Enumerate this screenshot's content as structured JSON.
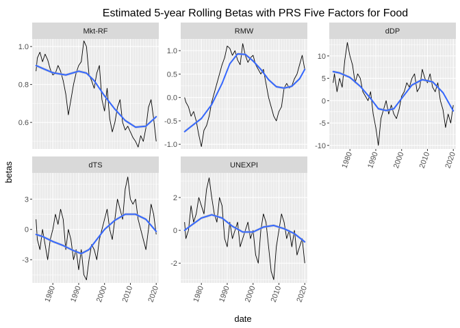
{
  "chart_data": {
    "type": "line",
    "title": "Estimated 5-year Rolling Betas with PRS Five Factors for Food",
    "xlabel": "date",
    "ylabel": "betas",
    "colors": {
      "panel_bg": "#ebebeb",
      "strip_bg": "#d9d9d9",
      "grid": "#ffffff",
      "raw_line": "#000000",
      "smooth_line": "#3366ff",
      "ribbon": "#bdbdbd"
    },
    "x_ticks": [
      1980,
      1990,
      2000,
      2010,
      2020
    ],
    "panels": [
      {
        "name": "Mkt-RF",
        "xlim": [
          1972,
          2021
        ],
        "ylim": [
          0.46,
          1.04
        ],
        "y_ticks": [
          0.6,
          0.8,
          1.0
        ],
        "y_tick_labels": [
          "0.6",
          "0.8",
          "1.0"
        ],
        "show_x_ticks": false,
        "series": [
          {
            "kind": "raw",
            "x": [
              1973.5,
              1974,
              1975,
              1976,
              1977,
              1978,
              1979,
              1980,
              1981,
              1982,
              1983,
              1984,
              1985,
              1986,
              1987,
              1988,
              1989,
              1990,
              1991,
              1992,
              1993,
              1994,
              1995,
              1996,
              1997,
              1998,
              1999,
              2000,
              2001,
              2002,
              2003,
              2004,
              2005,
              2006,
              2007,
              2008,
              2009,
              2010,
              2011,
              2012,
              2013,
              2014,
              2015,
              2016,
              2017,
              2018,
              2019,
              2020
            ],
            "y": [
              0.87,
              0.94,
              0.97,
              0.92,
              0.96,
              0.93,
              0.88,
              0.85,
              0.86,
              0.9,
              0.87,
              0.82,
              0.75,
              0.64,
              0.72,
              0.8,
              0.86,
              0.9,
              0.92,
              1.03,
              1.0,
              0.85,
              0.82,
              0.78,
              0.86,
              0.9,
              0.72,
              0.66,
              0.78,
              0.62,
              0.55,
              0.6,
              0.68,
              0.72,
              0.6,
              0.56,
              0.58,
              0.55,
              0.52,
              0.5,
              0.47,
              0.53,
              0.5,
              0.57,
              0.68,
              0.72,
              0.62,
              0.5
            ]
          },
          {
            "kind": "smooth",
            "x": [
              1973.5,
              1976,
              1980,
              1985,
              1990,
              1993,
              1996,
              2000,
              2004,
              2008,
              2012,
              2016,
              2020
            ],
            "y": [
              0.9,
              0.885,
              0.862,
              0.85,
              0.87,
              0.86,
              0.82,
              0.74,
              0.67,
              0.61,
              0.575,
              0.58,
              0.63
            ]
          }
        ]
      },
      {
        "name": "RMW",
        "xlim": [
          1972,
          2021
        ],
        "ylim": [
          -1.1,
          1.25
        ],
        "y_ticks": [
          -1.0,
          -0.5,
          0.0,
          0.5,
          1.0
        ],
        "y_tick_labels": [
          "-1.0",
          "-0.5",
          "0.0",
          "0.5",
          "1.0"
        ],
        "show_x_ticks": false,
        "series": [
          {
            "kind": "raw",
            "x": [
              1973.5,
              1974,
              1975,
              1976,
              1977,
              1978,
              1979,
              1980,
              1981,
              1982,
              1983,
              1984,
              1985,
              1986,
              1987,
              1988,
              1989,
              1990,
              1991,
              1992,
              1993,
              1994,
              1995,
              1996,
              1997,
              1998,
              1999,
              2000,
              2001,
              2002,
              2003,
              2004,
              2005,
              2006,
              2007,
              2008,
              2009,
              2010,
              2011,
              2012,
              2013,
              2014,
              2015,
              2016,
              2017,
              2018,
              2019,
              2020
            ],
            "y": [
              0.0,
              -0.1,
              -0.2,
              -0.4,
              -0.3,
              -0.5,
              -0.8,
              -1.05,
              -0.7,
              -0.6,
              -0.4,
              -0.1,
              0.1,
              0.3,
              0.5,
              0.7,
              0.85,
              1.1,
              1.05,
              0.9,
              1.0,
              0.8,
              0.7,
              1.15,
              0.9,
              0.75,
              0.85,
              0.9,
              0.7,
              0.6,
              0.5,
              0.6,
              0.3,
              0.0,
              -0.2,
              -0.4,
              -0.5,
              -0.3,
              -0.2,
              0.2,
              0.3,
              0.2,
              0.25,
              0.4,
              0.5,
              0.7,
              0.9,
              0.6
            ]
          },
          {
            "kind": "smooth",
            "x": [
              1973.5,
              1976,
              1980,
              1984,
              1988,
              1991,
              1994,
              1997,
              2000,
              2003,
              2006,
              2009,
              2012,
              2015,
              2018,
              2020
            ],
            "y": [
              -0.73,
              -0.62,
              -0.45,
              -0.15,
              0.3,
              0.72,
              0.93,
              0.92,
              0.78,
              0.6,
              0.38,
              0.23,
              0.2,
              0.24,
              0.4,
              0.6
            ]
          }
        ]
      },
      {
        "name": "dDP",
        "xlim": [
          1972,
          2021
        ],
        "ylim": [
          -10.8,
          13.8
        ],
        "y_ticks": [
          -10,
          -5,
          0,
          5,
          10
        ],
        "y_tick_labels": [
          "-10",
          "-5",
          "0",
          "5",
          "10"
        ],
        "show_x_ticks": true,
        "series": [
          {
            "kind": "raw",
            "x": [
              1973.5,
              1974,
              1975,
              1976,
              1977,
              1978,
              1979,
              1980,
              1981,
              1982,
              1983,
              1984,
              1985,
              1986,
              1987,
              1988,
              1989,
              1990,
              1991,
              1992,
              1993,
              1994,
              1995,
              1996,
              1997,
              1998,
              1999,
              2000,
              2001,
              2002,
              2003,
              2004,
              2005,
              2006,
              2007,
              2008,
              2009,
              2010,
              2011,
              2012,
              2013,
              2014,
              2015,
              2016,
              2017,
              2018,
              2019,
              2020
            ],
            "y": [
              4.0,
              6.0,
              2.0,
              5.0,
              3.0,
              9.0,
              13.0,
              10.0,
              8.0,
              4.0,
              6.0,
              5.0,
              2.0,
              1.0,
              0.0,
              2.0,
              -3.0,
              -6.0,
              -10.0,
              -4.0,
              -2.0,
              0.0,
              -3.0,
              -1.0,
              -3.0,
              -4.0,
              -2.0,
              1.0,
              2.0,
              4.0,
              3.0,
              5.0,
              6.0,
              2.0,
              3.0,
              7.0,
              5.0,
              4.0,
              6.0,
              3.0,
              2.0,
              4.0,
              0.0,
              -2.0,
              -6.0,
              -3.0,
              -5.0,
              -1.0
            ]
          },
          {
            "kind": "smooth",
            "x": [
              1973.5,
              1976,
              1980,
              1984,
              1988,
              1991,
              1994,
              1997,
              2000,
              2004,
              2008,
              2012,
              2016,
              2020
            ],
            "y": [
              6.5,
              6.2,
              5.2,
              3.2,
              0.5,
              -1.8,
              -2.2,
              -1.8,
              0.5,
              3.5,
              4.7,
              4.2,
              1.8,
              -2.3
            ]
          }
        ]
      },
      {
        "name": "dTS",
        "xlim": [
          1972,
          2021
        ],
        "ylim": [
          -5.3,
          5.6
        ],
        "y_ticks": [
          -3,
          0,
          3
        ],
        "y_tick_labels": [
          "-3",
          "0",
          "3"
        ],
        "show_x_ticks": true,
        "series": [
          {
            "kind": "raw",
            "x": [
              1973.5,
              1974,
              1975,
              1976,
              1977,
              1978,
              1979,
              1980,
              1981,
              1982,
              1983,
              1984,
              1985,
              1986,
              1987,
              1988,
              1989,
              1990,
              1991,
              1992,
              1993,
              1994,
              1995,
              1996,
              1997,
              1998,
              1999,
              2000,
              2001,
              2002,
              2003,
              2004,
              2005,
              2006,
              2007,
              2008,
              2009,
              2010,
              2011,
              2012,
              2013,
              2014,
              2015,
              2016,
              2017,
              2018,
              2019,
              2020
            ],
            "y": [
              1.0,
              -1.0,
              -2.0,
              0.0,
              -1.5,
              -3.0,
              -1.0,
              0.0,
              1.5,
              0.5,
              2.0,
              1.0,
              -2.0,
              0.0,
              -1.0,
              -3.0,
              -2.0,
              -4.0,
              -2.0,
              -4.5,
              -5.0,
              -3.0,
              -1.5,
              -2.0,
              -3.0,
              -1.0,
              0.0,
              1.0,
              2.0,
              0.0,
              -1.0,
              1.0,
              3.0,
              2.0,
              1.0,
              4.0,
              5.2,
              3.0,
              2.5,
              3.0,
              1.0,
              0.0,
              -1.0,
              -2.0,
              0.0,
              2.5,
              1.5,
              -0.5
            ]
          },
          {
            "kind": "smooth",
            "x": [
              1973.5,
              1976,
              1980,
              1984,
              1988,
              1991,
              1994,
              1997,
              2000,
              2004,
              2008,
              2012,
              2016,
              2020
            ],
            "y": [
              -0.5,
              -0.7,
              -1.2,
              -1.6,
              -2.1,
              -2.4,
              -2.0,
              -1.0,
              0.0,
              0.9,
              1.5,
              1.5,
              1.0,
              -0.2
            ]
          }
        ]
      },
      {
        "name": "UNEXPI",
        "xlim": [
          1972,
          2021
        ],
        "ylim": [
          -3.2,
          3.5
        ],
        "y_ticks": [
          -2,
          0,
          2
        ],
        "y_tick_labels": [
          "-2",
          "0",
          "2"
        ],
        "show_x_ticks": true,
        "series": [
          {
            "kind": "raw",
            "x": [
              1973.5,
              1974,
              1975,
              1976,
              1977,
              1978,
              1979,
              1980,
              1981,
              1982,
              1983,
              1984,
              1985,
              1986,
              1987,
              1988,
              1989,
              1990,
              1991,
              1992,
              1993,
              1994,
              1995,
              1996,
              1997,
              1998,
              1999,
              2000,
              2001,
              2002,
              2003,
              2004,
              2005,
              2006,
              2007,
              2008,
              2009,
              2010,
              2011,
              2012,
              2013,
              2014,
              2015,
              2016,
              2017,
              2018,
              2019,
              2020
            ],
            "y": [
              0.5,
              -0.5,
              0.0,
              1.5,
              0.5,
              1.0,
              2.0,
              1.5,
              1.0,
              2.5,
              3.2,
              2.0,
              1.0,
              0.5,
              2.0,
              1.5,
              -0.5,
              -1.0,
              0.5,
              -0.5,
              0.0,
              0.5,
              -1.0,
              -0.5,
              0.0,
              0.5,
              -0.5,
              0.0,
              -1.5,
              -2.0,
              0.0,
              1.0,
              0.5,
              -1.0,
              -2.5,
              -3.0,
              -1.0,
              0.0,
              1.0,
              0.5,
              -0.5,
              0.0,
              -1.0,
              0.0,
              -1.5,
              -1.0,
              -0.5,
              -2.0
            ]
          },
          {
            "kind": "smooth",
            "x": [
              1973.5,
              1976,
              1980,
              1984,
              1988,
              1992,
              1996,
              2000,
              2004,
              2008,
              2012,
              2016,
              2020
            ],
            "y": [
              0.0,
              0.3,
              0.75,
              0.95,
              0.75,
              0.25,
              -0.1,
              -0.1,
              0.2,
              0.3,
              0.1,
              -0.2,
              -0.7
            ]
          }
        ]
      }
    ]
  }
}
